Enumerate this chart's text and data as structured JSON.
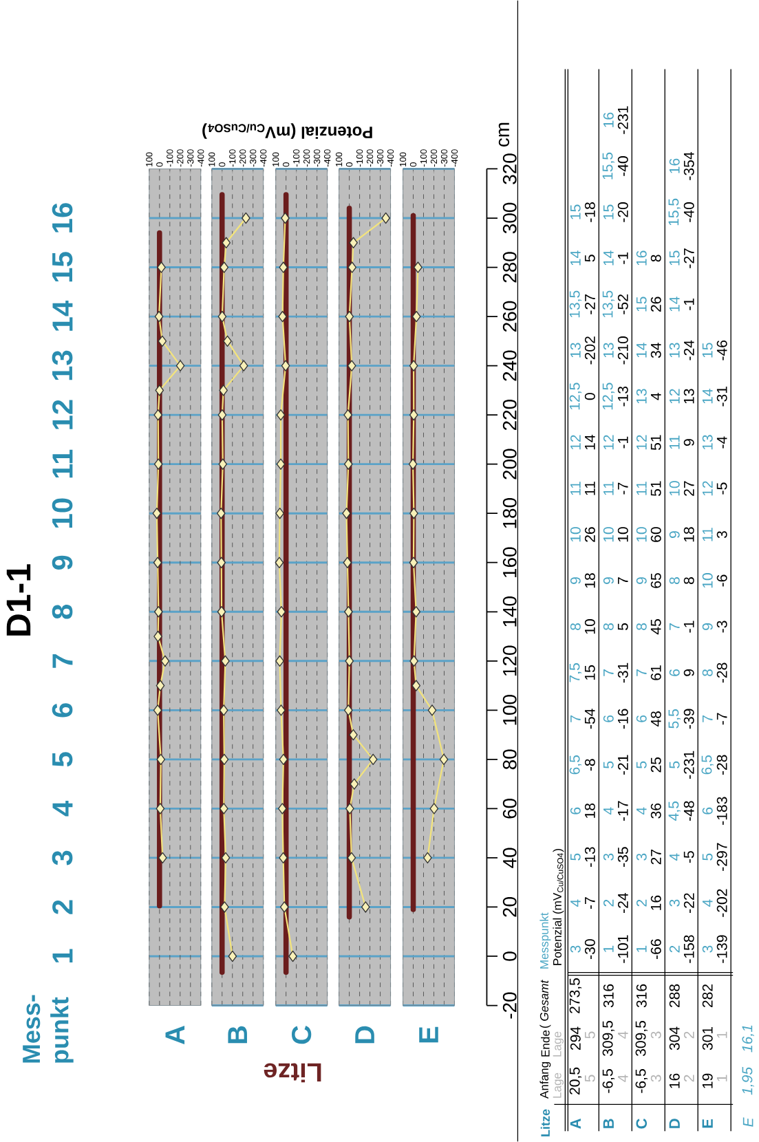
{
  "chart_data": [
    {
      "type": "line",
      "title": "D1-1",
      "ylabel": "Mess-punkt",
      "ylim": [
        0,
        17
      ],
      "yticks": [
        1,
        2,
        3,
        4,
        5,
        6,
        7,
        8,
        9,
        10,
        11,
        12,
        13,
        14,
        15,
        16
      ],
      "xlim": [
        100,
        -400
      ],
      "xticks": [
        100,
        0,
        -100,
        -200,
        -300,
        -400
      ],
      "tick_labels": "xy",
      "y2lim": [
        -20,
        320
      ],
      "grid": true,
      "series": [
        {
          "color": "#6b1d1d",
          "marker": "none",
          "axis": "y2",
          "x": [
            0,
            0
          ],
          "values": [
            20.5,
            294
          ]
        },
        {
          "color": "#f3e47c",
          "marker": "diamond",
          "axis": "y2",
          "x": [
            -30,
            -7,
            -13,
            18,
            -8,
            -54,
            15,
            10,
            18,
            26,
            11,
            14,
            0,
            -202,
            -27,
            5,
            -18
          ],
          "values": [
            40,
            60,
            80,
            100,
            110,
            120,
            130,
            140,
            160,
            180,
            200,
            220,
            230,
            240,
            250,
            260,
            280
          ]
        }
      ],
      "annotations": [
        "A",
        "20,5",
        "294",
        "273,5",
        "5",
        "5",
        "3",
        "-30",
        "4",
        "-7",
        "5",
        "-13",
        "6",
        "18",
        "6,5",
        "-8",
        "7",
        "-54",
        "7,5",
        "15",
        "8",
        "10",
        "9",
        "18",
        "10",
        "26",
        "11",
        "11",
        "12",
        "14",
        "12,5",
        "0",
        "13",
        "-202",
        "13,5",
        "-27",
        "14",
        "5",
        "15",
        "-18"
      ]
    },
    {
      "type": "line",
      "xlim": [
        100,
        -400
      ],
      "xticks": [
        100,
        0,
        -100,
        -200,
        -300,
        -400
      ],
      "tick_labels": "x",
      "y2lim": [
        -20,
        320
      ],
      "y2ticks": [
        -20,
        0,
        20,
        40,
        60,
        80,
        100,
        120,
        140,
        160,
        180,
        200,
        220,
        240,
        260,
        280,
        300,
        320
      ],
      "grid": true,
      "series": [
        {
          "color": "#6b1d1d",
          "marker": "none",
          "axis": "y2",
          "x": [
            0,
            0
          ],
          "values": [
            -6.5,
            309.5
          ]
        },
        {
          "color": "#f3e47c",
          "marker": "diamond",
          "axis": "y2",
          "x": [
            -101,
            -24,
            -35,
            -17,
            -21,
            -16,
            -31,
            5,
            7,
            10,
            -7,
            -1,
            -13,
            -210,
            -52,
            -1,
            -20,
            -40,
            -231
          ],
          "values": [
            0,
            20,
            40,
            60,
            80,
            100,
            120,
            140,
            160,
            180,
            200,
            220,
            230,
            240,
            250,
            260,
            280,
            290,
            300
          ]
        }
      ],
      "annotations": [
        "B",
        "-6,5",
        "309,5",
        "316",
        "4",
        "4",
        "1",
        "-101",
        "2",
        "-24",
        "3",
        "-35",
        "4",
        "-17",
        "5",
        "-21",
        "6",
        "-16",
        "7",
        "-31",
        "8",
        "5",
        "9",
        "7",
        "10",
        "10",
        "11",
        "-7",
        "12",
        "-1",
        "12,5",
        "-13",
        "13",
        "-210",
        "13,5",
        "-52",
        "14",
        "-1",
        "15",
        "-20",
        "15,5",
        "-40",
        "16",
        "-231"
      ]
    },
    {
      "type": "line",
      "xlim": [
        100,
        -400
      ],
      "xticks": [
        100,
        0,
        -100,
        -200,
        -300,
        -400
      ],
      "tick_labels": "x",
      "y2lim": [
        -20,
        320
      ],
      "y2ticks": [
        -20,
        0,
        20,
        40,
        60,
        80,
        100,
        120,
        140,
        160,
        180,
        200,
        220,
        240,
        260,
        280,
        300,
        320
      ],
      "grid": true,
      "series": [
        {
          "color": "#6b1d1d",
          "marker": "none",
          "axis": "y2",
          "x": [
            0,
            0
          ],
          "values": [
            -6.5,
            309.5
          ]
        },
        {
          "color": "#f3e47c",
          "marker": "diamond",
          "axis": "y2",
          "x": [
            -66,
            16,
            27,
            36,
            25,
            48,
            61,
            45,
            65,
            60,
            51,
            51,
            4,
            34,
            26,
            8
          ],
          "values": [
            0,
            20,
            40,
            60,
            80,
            100,
            120,
            140,
            160,
            180,
            200,
            220,
            240,
            260,
            280,
            300
          ]
        }
      ],
      "annotations": [
        "C",
        "-6,5",
        "309,5",
        "316",
        "3",
        "3",
        "1",
        "-66",
        "2",
        "16",
        "3",
        "27",
        "4",
        "36",
        "5",
        "25",
        "6",
        "48",
        "7",
        "61",
        "8",
        "45",
        "9",
        "65",
        "10",
        "60",
        "11",
        "51",
        "12",
        "51",
        "13",
        "4",
        "14",
        "34",
        "15",
        "26",
        "16",
        "8"
      ]
    },
    {
      "type": "line",
      "xlim": [
        100,
        -400
      ],
      "xticks": [
        100,
        0,
        -100,
        -200,
        -300,
        -400
      ],
      "tick_labels": "x",
      "y2lim": [
        -20,
        320
      ],
      "y2ticks": [
        -20,
        0,
        20,
        40,
        60,
        80,
        100,
        120,
        140,
        160,
        180,
        200,
        220,
        240,
        260,
        280,
        300,
        320
      ],
      "grid": true,
      "series": [
        {
          "color": "#6b1d1d",
          "marker": "none",
          "axis": "y2",
          "x": [
            0,
            0
          ],
          "values": [
            16,
            304
          ]
        },
        {
          "color": "#f3e47c",
          "marker": "diamond",
          "axis": "y2",
          "x": [
            -158,
            -22,
            -5,
            -48,
            -231,
            -39,
            9,
            -1,
            8,
            18,
            27,
            9,
            13,
            -24,
            -1,
            -27,
            -40,
            -354
          ],
          "values": [
            20,
            40,
            60,
            70,
            80,
            90,
            100,
            120,
            140,
            160,
            180,
            200,
            220,
            240,
            260,
            280,
            290,
            300
          ]
        }
      ],
      "annotations": [
        "D",
        "16",
        "304",
        "288",
        "2",
        "2",
        "2",
        "-158",
        "3",
        "-22",
        "4",
        "-5",
        "4,5",
        "-48",
        "5",
        "-231",
        "5,5",
        "-39",
        "6",
        "9",
        "7",
        "-1",
        "8",
        "8",
        "9",
        "18",
        "10",
        "27",
        "11",
        "9",
        "12",
        "13",
        "13",
        "-24",
        "14",
        "-1",
        "15",
        "-27",
        "15,5",
        "-40",
        "16",
        "-354"
      ]
    },
    {
      "type": "line",
      "y2label": "cm",
      "xlim": [
        100,
        -400
      ],
      "xticks": [
        100,
        0,
        -100,
        -200,
        -300,
        -400
      ],
      "tick_labels": "xy2",
      "y2lim": [
        -20,
        320
      ],
      "y2ticks": [
        -20,
        0,
        20,
        40,
        60,
        80,
        100,
        120,
        140,
        160,
        180,
        200,
        220,
        240,
        260,
        280,
        300,
        320
      ],
      "grid": true,
      "series": [
        {
          "color": "#6b1d1d",
          "marker": "none",
          "axis": "y2",
          "x": [
            0,
            0
          ],
          "values": [
            19,
            301
          ]
        },
        {
          "color": "#f3e47c",
          "marker": "diamond",
          "axis": "y2",
          "x": [
            -139,
            -202,
            -297,
            -183,
            -28,
            -7,
            -28,
            -3,
            -6,
            3,
            -5,
            -4,
            -31,
            -46
          ],
          "values": [
            40,
            60,
            80,
            100,
            110,
            120,
            140,
            160,
            180,
            200,
            220,
            240,
            260,
            280
          ]
        }
      ],
      "annotations": [
        "E",
        "19",
        "301",
        "282",
        "1",
        "1",
        "3",
        "-139",
        "4",
        "-202",
        "5",
        "-297",
        "6",
        "-183",
        "6,5",
        "-28",
        "7",
        "-7",
        "8",
        "-28",
        "9",
        "-3",
        "10",
        "-6",
        "11",
        "3",
        "12",
        "-5",
        "13",
        "-4",
        "14",
        "-31",
        "15",
        "-46"
      ]
    },
    {
      "type": "other",
      "annotations": [
        "Litze",
        "Potenzial (mV$_{Cu/CuSO4}$)",
        "Litze",
        "Anfang",
        "Ende",
        "( *Gesamt*",
        "Messpunkt",
        "Potenzial (mV$_{Cu/CuSO4}$)",
        "Lage",
        "Lage",
        "E",
        "1,95",
        "16,1"
      ]
    }
  ]
}
